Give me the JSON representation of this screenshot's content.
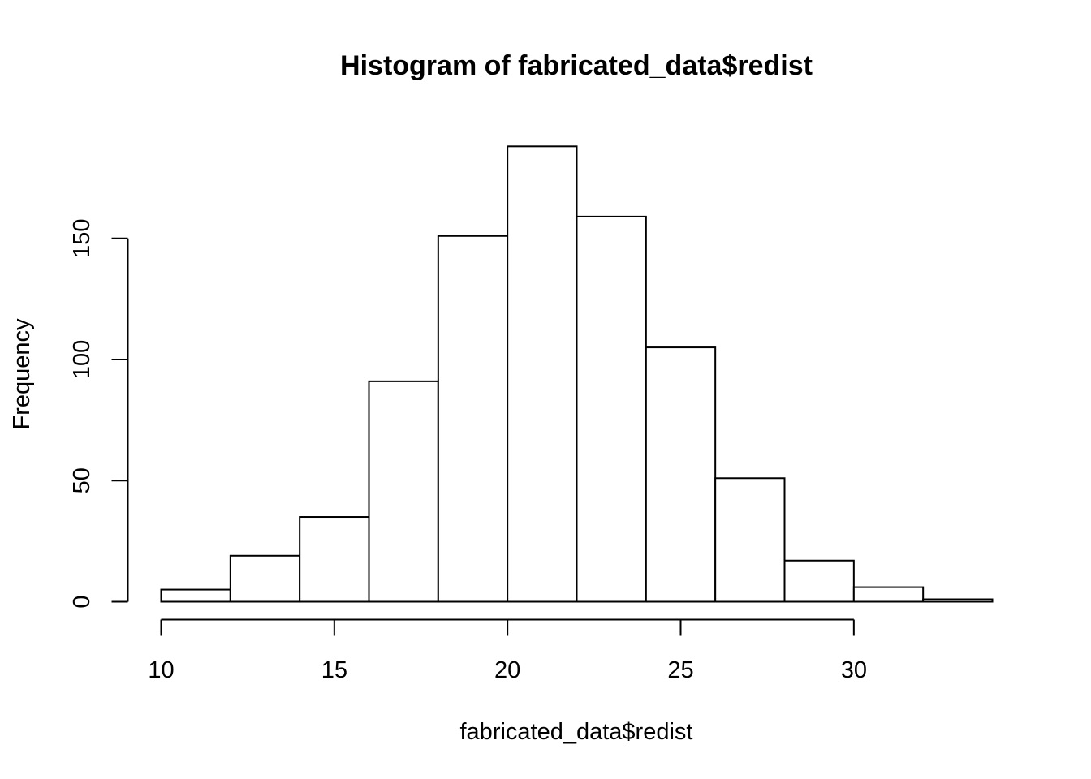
{
  "chart_data": {
    "type": "bar",
    "title": "Histogram of fabricated_data$redist",
    "xlabel": "fabricated_data$redist",
    "ylabel": "Frequency",
    "bin_edges": [
      10,
      12,
      14,
      16,
      18,
      20,
      22,
      24,
      26,
      28,
      30,
      32,
      34
    ],
    "values": [
      5,
      19,
      35,
      91,
      151,
      188,
      159,
      105,
      51,
      17,
      6,
      1
    ],
    "xticks": [
      10,
      15,
      20,
      25,
      30
    ],
    "yticks": [
      0,
      50,
      100,
      150
    ],
    "xlim": [
      10,
      34
    ],
    "ylim": [
      0,
      188
    ],
    "grid": false,
    "bar_fill": "#ffffff",
    "bar_stroke": "#000000"
  }
}
